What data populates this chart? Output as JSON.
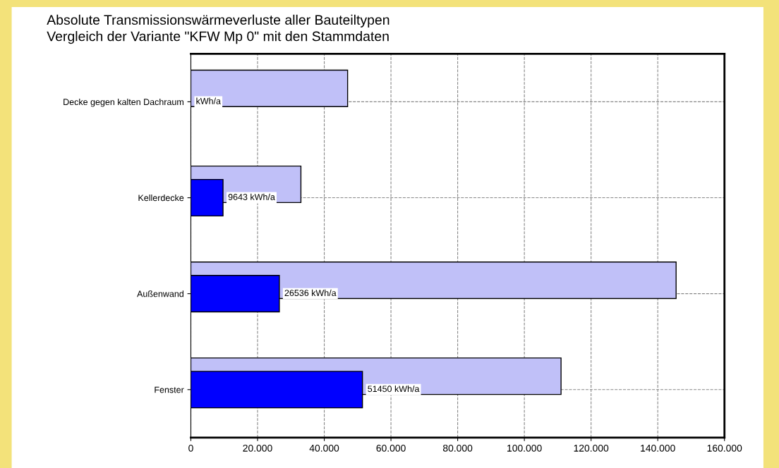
{
  "chart_data": {
    "type": "bar",
    "orientation": "horizontal",
    "title": "Absolute Transmissionswärmeverluste aller Bauteiltypen",
    "subtitle": "Vergleich der Variante \"KFW Mp 0\" mit den Stammdaten",
    "categories": [
      "Decke gegen kalten Dachraum",
      "Kellerdecke",
      "Außenwand",
      "Fenster"
    ],
    "series": [
      {
        "color": "#c0c0f8",
        "values": [
          47000,
          33000,
          145500,
          111000
        ]
      },
      {
        "color": "#0000ff",
        "values": [
          null,
          9643,
          26536,
          51450
        ],
        "value_labels": [
          "kWh/a",
          "9643 kWh/a",
          "26536 kWh/a",
          "51450 kWh/a"
        ]
      }
    ],
    "xlim": [
      0,
      160000
    ],
    "xticks": [
      {
        "value": 0,
        "label": "0"
      },
      {
        "value": 20000,
        "label": "20.000"
      },
      {
        "value": 40000,
        "label": "40.000"
      },
      {
        "value": 60000,
        "label": "60.000"
      },
      {
        "value": 80000,
        "label": "80.000"
      },
      {
        "value": 100000,
        "label": "100.000"
      },
      {
        "value": 120000,
        "label": "120.000"
      },
      {
        "value": 140000,
        "label": "140.000"
      },
      {
        "value": 160000,
        "label": "160.000"
      }
    ],
    "grid": true
  }
}
